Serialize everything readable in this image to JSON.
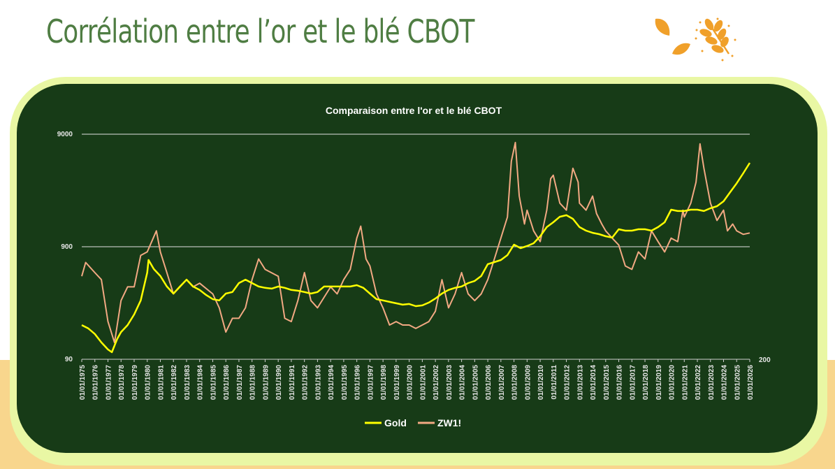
{
  "header": {
    "title": "Corrélation entre l’or et le blé CBOT",
    "logo_icon": "wheat-leaves-icon"
  },
  "colors": {
    "panel": "#173b17",
    "border": "#e9f7a4",
    "title": "#4f7d43",
    "accent": "#f0a02a",
    "gold": "#ffff00",
    "wheat": "#f2a983"
  },
  "chart_data": {
    "type": "line",
    "title": "Comparaison entre l'or et le blé CBOT",
    "xlabel": "",
    "ylabel": "",
    "x_ticks": [
      "01/01/1975",
      "01/01/1976",
      "01/01/1977",
      "01/01/1978",
      "01/01/1979",
      "01/01/1980",
      "01/01/1981",
      "01/01/1982",
      "01/01/1983",
      "01/01/1984",
      "01/01/1985",
      "01/01/1986",
      "01/01/1987",
      "01/01/1988",
      "01/01/1989",
      "01/01/1990",
      "01/01/1991",
      "01/01/1992",
      "01/01/1993",
      "01/01/1994",
      "01/01/1995",
      "01/01/1996",
      "01/01/1997",
      "01/01/1998",
      "01/01/1999",
      "01/01/2000",
      "01/01/2001",
      "01/01/2002",
      "01/01/2003",
      "01/01/2004",
      "01/01/2005",
      "01/01/2006",
      "01/01/2007",
      "01/01/2008",
      "01/01/2009",
      "01/01/2010",
      "01/01/2011",
      "01/01/2012",
      "01/01/2013",
      "01/01/2014",
      "01/01/2015",
      "01/01/2016",
      "01/01/2017",
      "01/01/2018",
      "01/01/2019",
      "01/01/2020",
      "01/01/2021",
      "01/01/2022",
      "01/01/2023",
      "01/01/2024",
      "01/01/2025",
      "01/01/2026"
    ],
    "xlim": [
      1975,
      2026
    ],
    "y_left": {
      "scale": "log",
      "ylim": [
        90,
        9000
      ],
      "ticks": [
        "90",
        "900",
        "9000"
      ]
    },
    "y_right": {
      "scale": "log",
      "ylim": [
        200,
        1400
      ],
      "ticks": [
        "200"
      ]
    },
    "grid": true,
    "legend": "bottom",
    "series": [
      {
        "name": "Gold",
        "axis": "left",
        "color": "#ffff00",
        "points": [
          [
            1975,
            181
          ],
          [
            1975.5,
            169
          ],
          [
            1976,
            151
          ],
          [
            1976.5,
            127
          ],
          [
            1977,
            110
          ],
          [
            1977.3,
            104
          ],
          [
            1977.7,
            136
          ],
          [
            1978,
            157
          ],
          [
            1978.5,
            181
          ],
          [
            1979,
            225
          ],
          [
            1979.5,
            300
          ],
          [
            1980,
            530
          ],
          [
            1980.1,
            686
          ],
          [
            1980.5,
            570
          ],
          [
            1981,
            494
          ],
          [
            1981.5,
            399
          ],
          [
            1982,
            345
          ],
          [
            1982.5,
            399
          ],
          [
            1983,
            459
          ],
          [
            1983.5,
            399
          ],
          [
            1984,
            372
          ],
          [
            1984.5,
            335
          ],
          [
            1985,
            308
          ],
          [
            1985.5,
            300
          ],
          [
            1986,
            345
          ],
          [
            1986.5,
            356
          ],
          [
            1987,
            428
          ],
          [
            1987.5,
            459
          ],
          [
            1988,
            428
          ],
          [
            1988.5,
            399
          ],
          [
            1989,
            388
          ],
          [
            1989.5,
            382
          ],
          [
            1990,
            399
          ],
          [
            1990.5,
            388
          ],
          [
            1991,
            372
          ],
          [
            1991.5,
            366
          ],
          [
            1992,
            356
          ],
          [
            1992.5,
            345
          ],
          [
            1993,
            356
          ],
          [
            1993.5,
            399
          ],
          [
            1994,
            399
          ],
          [
            1995,
            399
          ],
          [
            1995.5,
            399
          ],
          [
            1996,
            410
          ],
          [
            1996.5,
            388
          ],
          [
            1997,
            345
          ],
          [
            1997.5,
            308
          ],
          [
            1998,
            300
          ],
          [
            1998.5,
            291
          ],
          [
            1999,
            283
          ],
          [
            1999.5,
            275
          ],
          [
            2000,
            279
          ],
          [
            2000.5,
            267
          ],
          [
            2001,
            271
          ],
          [
            2001.5,
            287
          ],
          [
            2002,
            312
          ],
          [
            2002.5,
            345
          ],
          [
            2003,
            372
          ],
          [
            2003.5,
            388
          ],
          [
            2004,
            399
          ],
          [
            2004.5,
            428
          ],
          [
            2005,
            447
          ],
          [
            2005.5,
            494
          ],
          [
            2006,
            630
          ],
          [
            2006.5,
            657
          ],
          [
            2007,
            686
          ],
          [
            2007.5,
            758
          ],
          [
            2008,
            940
          ],
          [
            2008.5,
            875
          ],
          [
            2009,
            913
          ],
          [
            2009.5,
            967
          ],
          [
            2010,
            1115
          ],
          [
            2010.5,
            1345
          ],
          [
            2011,
            1485
          ],
          [
            2011.5,
            1663
          ],
          [
            2012,
            1715
          ],
          [
            2012.5,
            1593
          ],
          [
            2013,
            1345
          ],
          [
            2013.5,
            1250
          ],
          [
            2014,
            1197
          ],
          [
            2014.5,
            1165
          ],
          [
            2015,
            1115
          ],
          [
            2015.5,
            1085
          ],
          [
            2016,
            1286
          ],
          [
            2016.5,
            1250
          ],
          [
            2017,
            1250
          ],
          [
            2017.5,
            1286
          ],
          [
            2018,
            1286
          ],
          [
            2018.5,
            1250
          ],
          [
            2019,
            1345
          ],
          [
            2019.5,
            1485
          ],
          [
            2020,
            1920
          ],
          [
            2020.5,
            1870
          ],
          [
            2021,
            1870
          ],
          [
            2021.5,
            1920
          ],
          [
            2022,
            1920
          ],
          [
            2022.5,
            1870
          ],
          [
            2023,
            1980
          ],
          [
            2023.5,
            2063
          ],
          [
            2024,
            2280
          ],
          [
            2024.5,
            2745
          ],
          [
            2025,
            3300
          ],
          [
            2025.5,
            4040
          ],
          [
            2026,
            5004
          ]
        ]
      },
      {
        "name": "ZW1!",
        "axis": "right",
        "color": "#f2a983",
        "points": [
          [
            1975,
            410
          ],
          [
            1975.3,
            462
          ],
          [
            1976,
            423
          ],
          [
            1976.5,
            398
          ],
          [
            1977,
            277
          ],
          [
            1977.5,
            231
          ],
          [
            1978,
            332
          ],
          [
            1978.5,
            374
          ],
          [
            1979,
            374
          ],
          [
            1979.5,
            491
          ],
          [
            1980,
            506
          ],
          [
            1980.7,
            607
          ],
          [
            1981,
            506
          ],
          [
            1981.5,
            423
          ],
          [
            1982,
            352
          ],
          [
            1982.5,
            374
          ],
          [
            1983,
            398
          ],
          [
            1983.5,
            374
          ],
          [
            1984,
            386
          ],
          [
            1985,
            352
          ],
          [
            1985.5,
            312
          ],
          [
            1986,
            253
          ],
          [
            1986.5,
            285
          ],
          [
            1987,
            285
          ],
          [
            1987.5,
            312
          ],
          [
            1988,
            398
          ],
          [
            1988.5,
            476
          ],
          [
            1989,
            435
          ],
          [
            1990,
            410
          ],
          [
            1990.5,
            285
          ],
          [
            1991,
            277
          ],
          [
            1991.5,
            332
          ],
          [
            1992,
            423
          ],
          [
            1992.5,
            332
          ],
          [
            1993,
            312
          ],
          [
            1994,
            374
          ],
          [
            1994.5,
            352
          ],
          [
            1995,
            398
          ],
          [
            1995.5,
            435
          ],
          [
            1996,
            570
          ],
          [
            1996.3,
            632
          ],
          [
            1996.7,
            476
          ],
          [
            1997,
            448
          ],
          [
            1997.5,
            352
          ],
          [
            1998,
            312
          ],
          [
            1998.5,
            269
          ],
          [
            1999,
            277
          ],
          [
            1999.5,
            269
          ],
          [
            2000,
            269
          ],
          [
            2000.5,
            261
          ],
          [
            2001,
            269
          ],
          [
            2001.5,
            277
          ],
          [
            2002,
            303
          ],
          [
            2002.5,
            398
          ],
          [
            2003,
            312
          ],
          [
            2003.5,
            352
          ],
          [
            2004,
            423
          ],
          [
            2004.5,
            352
          ],
          [
            2005,
            332
          ],
          [
            2005.5,
            352
          ],
          [
            2006,
            398
          ],
          [
            2006.5,
            476
          ],
          [
            2007,
            570
          ],
          [
            2007.5,
            684
          ],
          [
            2007.8,
            1108
          ],
          [
            2008.1,
            1303
          ],
          [
            2008.4,
            820
          ],
          [
            2008.8,
            644
          ],
          [
            2009,
            726
          ],
          [
            2009.5,
            607
          ],
          [
            2010,
            553
          ],
          [
            2010.5,
            726
          ],
          [
            2010.8,
            953
          ],
          [
            2011,
            982
          ],
          [
            2011.5,
            771
          ],
          [
            2012,
            726
          ],
          [
            2012.5,
            1043
          ],
          [
            2012.9,
            925
          ],
          [
            2013,
            771
          ],
          [
            2013.5,
            726
          ],
          [
            2014,
            820
          ],
          [
            2014.3,
            705
          ],
          [
            2014.7,
            644
          ],
          [
            2015,
            607
          ],
          [
            2015.5,
            570
          ],
          [
            2016,
            537
          ],
          [
            2016.5,
            448
          ],
          [
            2017,
            435
          ],
          [
            2017.5,
            506
          ],
          [
            2018,
            476
          ],
          [
            2018.5,
            607
          ],
          [
            2019,
            553
          ],
          [
            2019.5,
            506
          ],
          [
            2020,
            570
          ],
          [
            2020.5,
            553
          ],
          [
            2020.9,
            726
          ],
          [
            2021,
            684
          ],
          [
            2021.5,
            771
          ],
          [
            2021.9,
            925
          ],
          [
            2022.2,
            1288
          ],
          [
            2022.5,
            1043
          ],
          [
            2022.8,
            870
          ],
          [
            2023,
            771
          ],
          [
            2023.5,
            664
          ],
          [
            2024,
            726
          ],
          [
            2024.3,
            607
          ],
          [
            2024.7,
            644
          ],
          [
            2025,
            607
          ],
          [
            2025.5,
            589
          ],
          [
            2026,
            596
          ]
        ]
      }
    ]
  }
}
